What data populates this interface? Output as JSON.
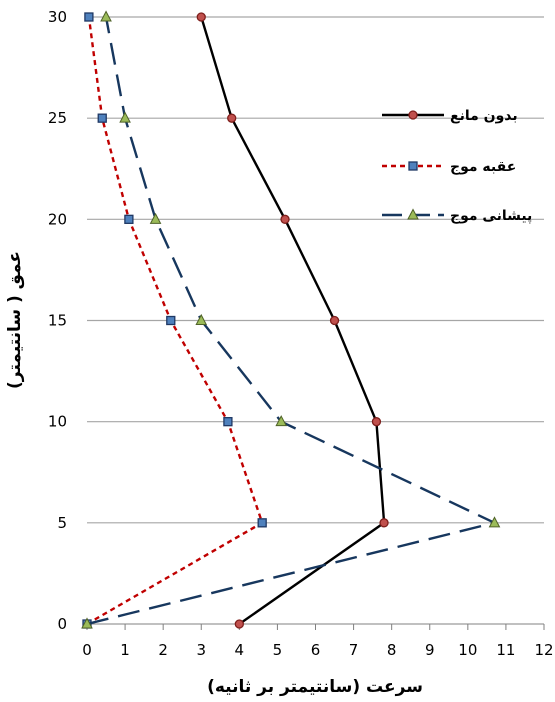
{
  "chart_data": {
    "type": "line",
    "xlabel": "سرعت (سانتیمتر بر ثانیه)",
    "ylabel": "عمق ( سانتیمتر)",
    "xlim": [
      0,
      12
    ],
    "ylim": [
      0,
      30
    ],
    "x_ticks": [
      0,
      1,
      2,
      3,
      4,
      5,
      6,
      7,
      8,
      9,
      10,
      11,
      12
    ],
    "y_ticks": [
      0,
      5,
      10,
      15,
      20,
      25,
      30
    ],
    "grid": "horizontal",
    "legend_position": "right",
    "series": [
      {
        "name": "بدون مانع",
        "color": "#000000",
        "marker": "circle",
        "marker_color": "#c0504d",
        "line_style": "solid",
        "points": [
          [
            4.0,
            0
          ],
          [
            7.8,
            5
          ],
          [
            7.6,
            10
          ],
          [
            6.5,
            15
          ],
          [
            5.2,
            20
          ],
          [
            3.8,
            25
          ],
          [
            3.0,
            30
          ]
        ]
      },
      {
        "name": "عقبه موج",
        "color": "#c00000",
        "marker": "square",
        "marker_color": "#4f81bd",
        "line_style": "short-dash",
        "points": [
          [
            0.0,
            0
          ],
          [
            4.6,
            5
          ],
          [
            3.7,
            10
          ],
          [
            2.2,
            15
          ],
          [
            1.1,
            20
          ],
          [
            0.4,
            25
          ],
          [
            0.05,
            30
          ]
        ]
      },
      {
        "name": "پیشانی موج",
        "color": "#17375e",
        "marker": "triangle",
        "marker_color": "#9bbb59",
        "line_style": "long-dash",
        "points": [
          [
            0.0,
            0
          ],
          [
            10.7,
            5
          ],
          [
            5.1,
            10
          ],
          [
            3.0,
            15
          ],
          [
            1.8,
            20
          ],
          [
            1.0,
            25
          ],
          [
            0.5,
            30
          ]
        ]
      }
    ]
  }
}
